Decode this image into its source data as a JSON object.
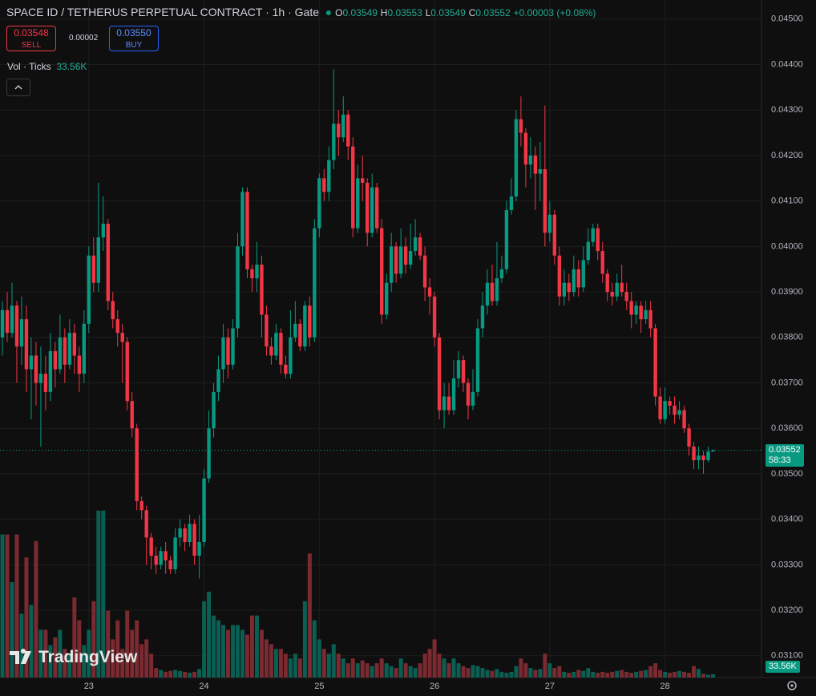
{
  "chart_data": {
    "type": "candlestick",
    "header": {
      "symbol": "SPACE ID / TETHERUS PERPETUAL CONTRACT · 1h · Gate",
      "o_label": "O",
      "o": "0.03549",
      "h_label": "H",
      "h": "0.03553",
      "l_label": "L",
      "l": "0.03549",
      "c_label": "C",
      "c": "0.03552",
      "change": "+0.00003 (+0.08%)"
    },
    "trade": {
      "sell_price": "0.03548",
      "sell": "SELL",
      "spread": "0.00002",
      "buy_price": "0.03550",
      "buy": "BUY"
    },
    "volume_legend": {
      "label": "Vol · Ticks",
      "value": "33.56K"
    },
    "price_tag": {
      "price": "0.03552",
      "countdown": "58:33"
    },
    "volume_tag": "33.56K",
    "brand": "TradingView",
    "up_color": "#089981",
    "down_color": "#f23645",
    "volume_up_color": "#0a5e52",
    "volume_down_color": "#7a2a30",
    "grid": true,
    "ylim": [
      0.03052,
      0.04542
    ],
    "yticks": [
      {
        "value": 0.031,
        "label": "0.03100"
      },
      {
        "value": 0.032,
        "label": "0.03200"
      },
      {
        "value": 0.033,
        "label": "0.03300"
      },
      {
        "value": 0.034,
        "label": "0.03400"
      },
      {
        "value": 0.035,
        "label": "0.03500"
      },
      {
        "value": 0.036,
        "label": "0.03600"
      },
      {
        "value": 0.037,
        "label": "0.03700"
      },
      {
        "value": 0.038,
        "label": "0.03800"
      },
      {
        "value": 0.039,
        "label": "0.03900"
      },
      {
        "value": 0.04,
        "label": "0.04000"
      },
      {
        "value": 0.041,
        "label": "0.04100"
      },
      {
        "value": 0.042,
        "label": "0.04200"
      },
      {
        "value": 0.043,
        "label": "0.04300"
      },
      {
        "value": 0.044,
        "label": "0.04400"
      },
      {
        "value": 0.045,
        "label": "0.04500"
      }
    ],
    "xlim": [
      -0.5,
      158.1
    ],
    "xticks": [
      {
        "value": 18,
        "label": "23"
      },
      {
        "value": 42,
        "label": "24"
      },
      {
        "value": 66,
        "label": "25"
      },
      {
        "value": 90,
        "label": "26"
      },
      {
        "value": 114,
        "label": "27"
      },
      {
        "value": 138,
        "label": "28"
      }
    ],
    "volume_lim": [
      0,
      7100
    ],
    "x": [
      0,
      1,
      2,
      3,
      4,
      5,
      6,
      7,
      8,
      9,
      10,
      11,
      12,
      13,
      14,
      15,
      16,
      17,
      18,
      19,
      20,
      21,
      22,
      23,
      24,
      25,
      26,
      27,
      28,
      29,
      30,
      31,
      32,
      33,
      34,
      35,
      36,
      37,
      38,
      39,
      40,
      41,
      42,
      43,
      44,
      45,
      46,
      47,
      48,
      49,
      50,
      51,
      52,
      53,
      54,
      55,
      56,
      57,
      58,
      59,
      60,
      61,
      62,
      63,
      64,
      65,
      66,
      67,
      68,
      69,
      70,
      71,
      72,
      73,
      74,
      75,
      76,
      77,
      78,
      79,
      80,
      81,
      82,
      83,
      84,
      85,
      86,
      87,
      88,
      89,
      90,
      91,
      92,
      93,
      94,
      95,
      96,
      97,
      98,
      99,
      100,
      101,
      102,
      103,
      104,
      105,
      106,
      107,
      108,
      109,
      110,
      111,
      112,
      113,
      114,
      115,
      116,
      117,
      118,
      119,
      120,
      121,
      122,
      123,
      124,
      125,
      126,
      127,
      128,
      129,
      130,
      131,
      132,
      133,
      134,
      135,
      136,
      137,
      138,
      139,
      140,
      141,
      142,
      143,
      144,
      145,
      146,
      147,
      148
    ],
    "ohlc": [
      [
        0.038,
        0.0388,
        0.0376,
        0.0386
      ],
      [
        0.0386,
        0.039,
        0.0379,
        0.0381
      ],
      [
        0.0381,
        0.0392,
        0.038,
        0.0387
      ],
      [
        0.0387,
        0.0388,
        0.037,
        0.0378
      ],
      [
        0.0378,
        0.0389,
        0.0374,
        0.0384
      ],
      [
        0.0384,
        0.0387,
        0.0368,
        0.0373
      ],
      [
        0.0373,
        0.038,
        0.0362,
        0.0376
      ],
      [
        0.0376,
        0.0379,
        0.0365,
        0.037
      ],
      [
        0.037,
        0.0378,
        0.0356,
        0.0372
      ],
      [
        0.0372,
        0.0376,
        0.0364,
        0.0368
      ],
      [
        0.0368,
        0.0381,
        0.0366,
        0.0377
      ],
      [
        0.0377,
        0.0379,
        0.0369,
        0.0373
      ],
      [
        0.0373,
        0.0385,
        0.0372,
        0.038
      ],
      [
        0.038,
        0.0382,
        0.037,
        0.0374
      ],
      [
        0.0374,
        0.0384,
        0.0373,
        0.0381
      ],
      [
        0.0381,
        0.0383,
        0.0372,
        0.0376
      ],
      [
        0.0376,
        0.0378,
        0.0368,
        0.0372
      ],
      [
        0.0372,
        0.0386,
        0.037,
        0.0383
      ],
      [
        0.0383,
        0.04,
        0.0381,
        0.0398
      ],
      [
        0.0398,
        0.0402,
        0.039,
        0.0392
      ],
      [
        0.0392,
        0.0414,
        0.039,
        0.0402
      ],
      [
        0.0402,
        0.0411,
        0.0399,
        0.0405
      ],
      [
        0.0405,
        0.0406,
        0.0386,
        0.0388
      ],
      [
        0.0388,
        0.039,
        0.0382,
        0.0384
      ],
      [
        0.0384,
        0.0386,
        0.0378,
        0.0381
      ],
      [
        0.0381,
        0.0383,
        0.037,
        0.0379
      ],
      [
        0.0379,
        0.038,
        0.0364,
        0.0366
      ],
      [
        0.0366,
        0.0368,
        0.0358,
        0.036
      ],
      [
        0.036,
        0.0361,
        0.0342,
        0.0344
      ],
      [
        0.0344,
        0.0345,
        0.034,
        0.0342
      ],
      [
        0.0342,
        0.0343,
        0.033,
        0.0336
      ],
      [
        0.0336,
        0.0337,
        0.0329,
        0.0332
      ],
      [
        0.0332,
        0.0334,
        0.0328,
        0.033
      ],
      [
        0.033,
        0.0334,
        0.0329,
        0.0333
      ],
      [
        0.0333,
        0.0335,
        0.0328,
        0.0331
      ],
      [
        0.0331,
        0.0332,
        0.0328,
        0.0329
      ],
      [
        0.0329,
        0.0338,
        0.0328,
        0.0336
      ],
      [
        0.0336,
        0.034,
        0.0334,
        0.0338
      ],
      [
        0.0338,
        0.0339,
        0.0333,
        0.0335
      ],
      [
        0.0335,
        0.0341,
        0.0334,
        0.0339
      ],
      [
        0.0339,
        0.034,
        0.033,
        0.0332
      ],
      [
        0.0332,
        0.0341,
        0.0327,
        0.0335
      ],
      [
        0.0335,
        0.0351,
        0.0334,
        0.0349
      ],
      [
        0.0349,
        0.0364,
        0.0348,
        0.036
      ],
      [
        0.036,
        0.037,
        0.0358,
        0.0368
      ],
      [
        0.0368,
        0.0376,
        0.0366,
        0.0373
      ],
      [
        0.0373,
        0.0383,
        0.037,
        0.038
      ],
      [
        0.038,
        0.0382,
        0.0371,
        0.0374
      ],
      [
        0.0374,
        0.0384,
        0.0373,
        0.0382
      ],
      [
        0.0382,
        0.0403,
        0.038,
        0.04
      ],
      [
        0.04,
        0.0413,
        0.0398,
        0.0412
      ],
      [
        0.0412,
        0.0413,
        0.0393,
        0.0395
      ],
      [
        0.0395,
        0.0396,
        0.039,
        0.0393
      ],
      [
        0.0393,
        0.0401,
        0.039,
        0.0396
      ],
      [
        0.0396,
        0.0398,
        0.038,
        0.0385
      ],
      [
        0.0385,
        0.0387,
        0.0376,
        0.0378
      ],
      [
        0.0378,
        0.038,
        0.0374,
        0.0376
      ],
      [
        0.0376,
        0.0383,
        0.0375,
        0.0381
      ],
      [
        0.0381,
        0.0382,
        0.0372,
        0.0374
      ],
      [
        0.0374,
        0.0376,
        0.0371,
        0.0372
      ],
      [
        0.0372,
        0.0386,
        0.0371,
        0.038
      ],
      [
        0.038,
        0.0388,
        0.0379,
        0.0383
      ],
      [
        0.0383,
        0.0384,
        0.0377,
        0.0378
      ],
      [
        0.0378,
        0.0388,
        0.0377,
        0.0387
      ],
      [
        0.0387,
        0.0389,
        0.0378,
        0.038
      ],
      [
        0.038,
        0.0406,
        0.0379,
        0.0404
      ],
      [
        0.0404,
        0.0416,
        0.0402,
        0.0415
      ],
      [
        0.0415,
        0.0417,
        0.041,
        0.0412
      ],
      [
        0.0412,
        0.0422,
        0.041,
        0.0419
      ],
      [
        0.0419,
        0.0439,
        0.0417,
        0.0427
      ],
      [
        0.0427,
        0.043,
        0.042,
        0.0424
      ],
      [
        0.0424,
        0.0433,
        0.0423,
        0.0429
      ],
      [
        0.0429,
        0.043,
        0.0419,
        0.0422
      ],
      [
        0.0422,
        0.0424,
        0.0402,
        0.0404
      ],
      [
        0.0404,
        0.0418,
        0.0403,
        0.0415
      ],
      [
        0.0415,
        0.042,
        0.041,
        0.0414
      ],
      [
        0.0414,
        0.0415,
        0.04,
        0.0403
      ],
      [
        0.0403,
        0.0416,
        0.0402,
        0.0413
      ],
      [
        0.0413,
        0.0414,
        0.0403,
        0.0404
      ],
      [
        0.0404,
        0.0406,
        0.0383,
        0.0385
      ],
      [
        0.0385,
        0.0394,
        0.0384,
        0.0392
      ],
      [
        0.0392,
        0.0403,
        0.039,
        0.04
      ],
      [
        0.04,
        0.0401,
        0.0392,
        0.0394
      ],
      [
        0.0394,
        0.0404,
        0.0393,
        0.04
      ],
      [
        0.04,
        0.0402,
        0.0394,
        0.0396
      ],
      [
        0.0396,
        0.0405,
        0.0395,
        0.0399
      ],
      [
        0.0399,
        0.0406,
        0.0398,
        0.0402
      ],
      [
        0.0402,
        0.0403,
        0.0397,
        0.0398
      ],
      [
        0.0398,
        0.04,
        0.0388,
        0.0391
      ],
      [
        0.0391,
        0.0393,
        0.0385,
        0.0389
      ],
      [
        0.0389,
        0.039,
        0.0378,
        0.038
      ],
      [
        0.038,
        0.0381,
        0.0362,
        0.0364
      ],
      [
        0.0364,
        0.037,
        0.036,
        0.0367
      ],
      [
        0.0367,
        0.037,
        0.0363,
        0.0364
      ],
      [
        0.0364,
        0.0375,
        0.0363,
        0.0371
      ],
      [
        0.0371,
        0.0377,
        0.0369,
        0.0375
      ],
      [
        0.0375,
        0.0376,
        0.0368,
        0.037
      ],
      [
        0.037,
        0.0371,
        0.0362,
        0.0365
      ],
      [
        0.0365,
        0.0373,
        0.0364,
        0.0368
      ],
      [
        0.0368,
        0.0384,
        0.0367,
        0.0382
      ],
      [
        0.0382,
        0.039,
        0.038,
        0.0387
      ],
      [
        0.0387,
        0.0395,
        0.0385,
        0.0392
      ],
      [
        0.0392,
        0.0396,
        0.0387,
        0.0388
      ],
      [
        0.0388,
        0.0401,
        0.0387,
        0.0393
      ],
      [
        0.0393,
        0.0398,
        0.0392,
        0.0395
      ],
      [
        0.0395,
        0.041,
        0.0394,
        0.0408
      ],
      [
        0.0408,
        0.0415,
        0.0407,
        0.0411
      ],
      [
        0.0411,
        0.043,
        0.041,
        0.0428
      ],
      [
        0.0428,
        0.0433,
        0.0422,
        0.0425
      ],
      [
        0.0425,
        0.0426,
        0.0413,
        0.0418
      ],
      [
        0.0418,
        0.0424,
        0.0415,
        0.042
      ],
      [
        0.042,
        0.0422,
        0.0408,
        0.0416
      ],
      [
        0.0416,
        0.0423,
        0.041,
        0.0417
      ],
      [
        0.0417,
        0.0431,
        0.04,
        0.0403
      ],
      [
        0.0403,
        0.041,
        0.0401,
        0.0407
      ],
      [
        0.0407,
        0.0408,
        0.0396,
        0.0398
      ],
      [
        0.0398,
        0.04,
        0.0387,
        0.0389
      ],
      [
        0.0389,
        0.0395,
        0.0387,
        0.0392
      ],
      [
        0.0392,
        0.0394,
        0.0388,
        0.039
      ],
      [
        0.039,
        0.0398,
        0.0389,
        0.0395
      ],
      [
        0.0395,
        0.0397,
        0.0389,
        0.0391
      ],
      [
        0.0391,
        0.04,
        0.039,
        0.0397
      ],
      [
        0.0397,
        0.0404,
        0.0396,
        0.0401
      ],
      [
        0.0401,
        0.0405,
        0.04,
        0.0404
      ],
      [
        0.0404,
        0.0405,
        0.0397,
        0.0399
      ],
      [
        0.0399,
        0.0401,
        0.0392,
        0.0394
      ],
      [
        0.0394,
        0.0395,
        0.0388,
        0.039
      ],
      [
        0.039,
        0.0392,
        0.0387,
        0.0389
      ],
      [
        0.0389,
        0.0394,
        0.0388,
        0.0392
      ],
      [
        0.0392,
        0.0396,
        0.0389,
        0.039
      ],
      [
        0.039,
        0.0392,
        0.0386,
        0.0388
      ],
      [
        0.0388,
        0.039,
        0.0382,
        0.0385
      ],
      [
        0.0385,
        0.0388,
        0.0383,
        0.0387
      ],
      [
        0.0387,
        0.0388,
        0.0381,
        0.0384
      ],
      [
        0.0384,
        0.0388,
        0.0383,
        0.0386
      ],
      [
        0.0386,
        0.0388,
        0.038,
        0.0382
      ],
      [
        0.0382,
        0.0383,
        0.0365,
        0.0367
      ],
      [
        0.0367,
        0.0369,
        0.0361,
        0.0362
      ],
      [
        0.0362,
        0.0369,
        0.0361,
        0.0366
      ],
      [
        0.0366,
        0.0367,
        0.0363,
        0.0365
      ],
      [
        0.0365,
        0.0367,
        0.0361,
        0.0363
      ],
      [
        0.0363,
        0.0366,
        0.0362,
        0.0364
      ],
      [
        0.0364,
        0.0365,
        0.0359,
        0.036
      ],
      [
        0.036,
        0.0361,
        0.0354,
        0.0356
      ],
      [
        0.0356,
        0.0357,
        0.0351,
        0.0353
      ],
      [
        0.0353,
        0.0356,
        0.0351,
        0.0354
      ],
      [
        0.0354,
        0.0355,
        0.035,
        0.0353
      ],
      [
        0.0353,
        0.0356,
        0.03525,
        0.03549
      ],
      [
        0.03549,
        0.03553,
        0.03549,
        0.03552
      ]
    ],
    "volume": [
      1500,
      1500,
      1000,
      1500,
      670,
      1260,
      760,
      1430,
      500,
      500,
      340,
      420,
      500,
      300,
      250,
      840,
      600,
      340,
      500,
      800,
      1750,
      1750,
      700,
      400,
      600,
      300,
      700,
      500,
      600,
      350,
      400,
      250,
      100,
      80,
      60,
      70,
      80,
      70,
      60,
      50,
      60,
      90,
      800,
      900,
      650,
      600,
      550,
      500,
      550,
      550,
      500,
      450,
      650,
      650,
      500,
      400,
      350,
      300,
      300,
      250,
      200,
      250,
      200,
      800,
      1300,
      600,
      400,
      300,
      250,
      350,
      250,
      200,
      150,
      200,
      150,
      180,
      150,
      120,
      150,
      200,
      150,
      120,
      100,
      200,
      150,
      120,
      100,
      150,
      250,
      300,
      400,
      250,
      200,
      150,
      200,
      150,
      120,
      100,
      130,
      120,
      100,
      80,
      70,
      90,
      60,
      50,
      60,
      120,
      200,
      150,
      100,
      80,
      90,
      250,
      150,
      100,
      120,
      60,
      50,
      60,
      80,
      70,
      100,
      60,
      50,
      60,
      50,
      60,
      70,
      80,
      60,
      50,
      60,
      70,
      80,
      120,
      150,
      80,
      60,
      50,
      60,
      70,
      60,
      50,
      120,
      90,
      40,
      30,
      33.56
    ]
  }
}
